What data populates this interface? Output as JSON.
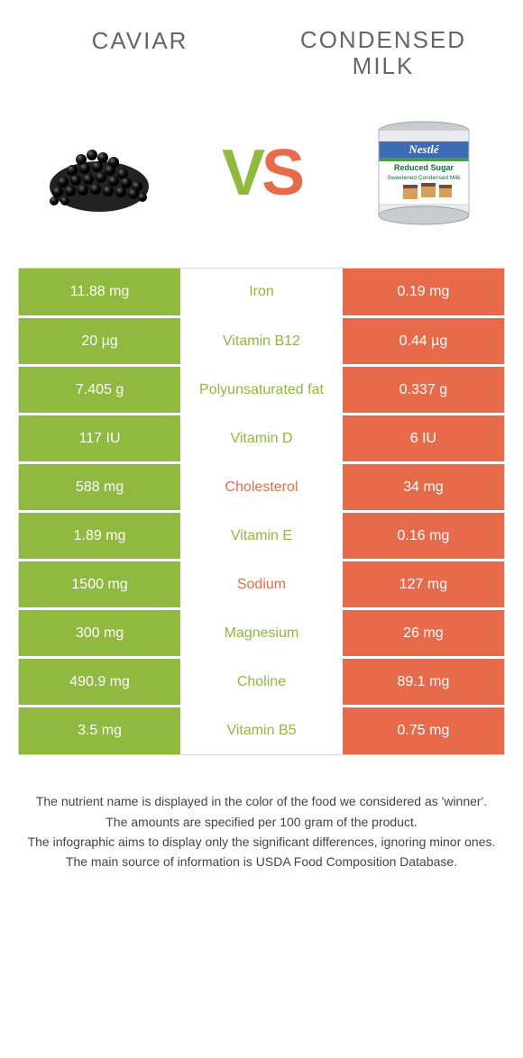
{
  "titles": {
    "left": "CAVIAR",
    "right_line1": "CONDENSED",
    "right_line2": "MILK"
  },
  "vs": {
    "v": "V",
    "s": "S"
  },
  "colors": {
    "left": "#8fb93f",
    "right": "#e76b4a",
    "bg": "#ffffff",
    "text": "#444"
  },
  "table": {
    "rows": [
      {
        "left": "11.88 mg",
        "mid": "Iron",
        "right": "0.19 mg",
        "winner": "left"
      },
      {
        "left": "20 µg",
        "mid": "Vitamin B12",
        "right": "0.44 µg",
        "winner": "left"
      },
      {
        "left": "7.405 g",
        "mid": "Polyunsaturated fat",
        "right": "0.337 g",
        "winner": "left"
      },
      {
        "left": "117 IU",
        "mid": "Vitamin D",
        "right": "6 IU",
        "winner": "left"
      },
      {
        "left": "588 mg",
        "mid": "Cholesterol",
        "right": "34 mg",
        "winner": "right"
      },
      {
        "left": "1.89 mg",
        "mid": "Vitamin E",
        "right": "0.16 mg",
        "winner": "left"
      },
      {
        "left": "1500 mg",
        "mid": "Sodium",
        "right": "127 mg",
        "winner": "right"
      },
      {
        "left": "300 mg",
        "mid": "Magnesium",
        "right": "26 mg",
        "winner": "left"
      },
      {
        "left": "490.9 mg",
        "mid": "Choline",
        "right": "89.1 mg",
        "winner": "left"
      },
      {
        "left": "3.5 mg",
        "mid": "Vitamin B5",
        "right": "0.75 mg",
        "winner": "left"
      }
    ]
  },
  "footer": {
    "line1": "The nutrient name is displayed in the color of the food we considered as 'winner'.",
    "line2": "The amounts are specified per 100 gram of the product.",
    "line3": "The infographic aims to display only the significant differences, ignoring minor ones.",
    "line4": "The main source of information is USDA Food Composition Database."
  }
}
